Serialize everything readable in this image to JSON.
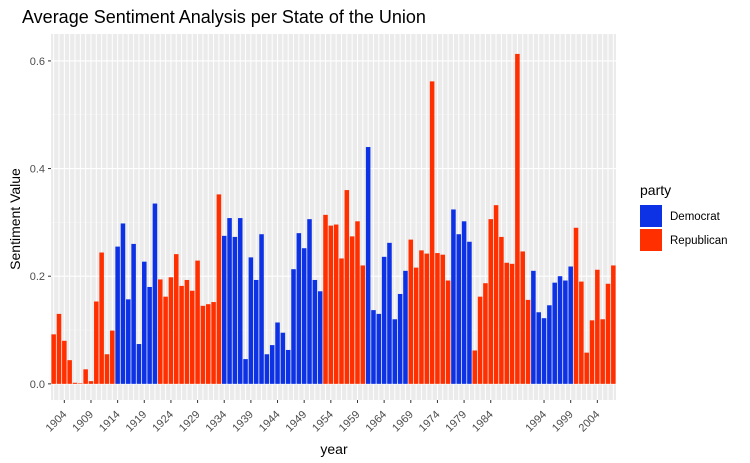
{
  "chart_data": {
    "type": "bar",
    "title": "Average Sentiment Analysis per State of the Union",
    "xlabel": "year",
    "ylabel": "Sentiment Value",
    "ylim": [
      -0.03,
      0.65
    ],
    "y_ticks": [
      0.0,
      0.2,
      0.4,
      0.6
    ],
    "y_tick_labels": [
      "0.0",
      "0.2",
      "0.4",
      "0.6"
    ],
    "x_tick_labels": [
      "1904",
      "1909",
      "1914",
      "1919",
      "1924",
      "1929",
      "1934",
      "1939",
      "1944",
      "1949",
      "1954",
      "1959",
      "1964",
      "1969",
      "1974",
      "1979",
      "1984",
      "1994",
      "1999",
      "2004"
    ],
    "grid": true,
    "legend": {
      "title": "party",
      "position": "right",
      "entries": [
        {
          "label": "Democrat",
          "color": "#0d32e6"
        },
        {
          "label": "Republican",
          "color": "#ff2f00"
        }
      ]
    },
    "bars": [
      {
        "party": "Republican",
        "value": 0.092
      },
      {
        "party": "Republican",
        "value": 0.13
      },
      {
        "party": "Republican",
        "value": 0.08
      },
      {
        "party": "Republican",
        "value": 0.044
      },
      {
        "party": "Republican",
        "value": 0.002
      },
      {
        "party": "Republican",
        "value": 0.001
      },
      {
        "party": "Republican",
        "value": 0.027
      },
      {
        "party": "Republican",
        "value": 0.005
      },
      {
        "party": "Republican",
        "value": 0.153
      },
      {
        "party": "Republican",
        "value": 0.244
      },
      {
        "party": "Republican",
        "value": 0.055
      },
      {
        "party": "Republican",
        "value": 0.099
      },
      {
        "party": "Democrat",
        "value": 0.255
      },
      {
        "party": "Democrat",
        "value": 0.298
      },
      {
        "party": "Democrat",
        "value": 0.157
      },
      {
        "party": "Democrat",
        "value": 0.26
      },
      {
        "party": "Democrat",
        "value": 0.074
      },
      {
        "party": "Democrat",
        "value": 0.227
      },
      {
        "party": "Democrat",
        "value": 0.18
      },
      {
        "party": "Democrat",
        "value": 0.335
      },
      {
        "party": "Republican",
        "value": 0.194
      },
      {
        "party": "Republican",
        "value": 0.162
      },
      {
        "party": "Republican",
        "value": 0.198
      },
      {
        "party": "Republican",
        "value": 0.241
      },
      {
        "party": "Republican",
        "value": 0.182
      },
      {
        "party": "Republican",
        "value": 0.193
      },
      {
        "party": "Republican",
        "value": 0.173
      },
      {
        "party": "Republican",
        "value": 0.229
      },
      {
        "party": "Republican",
        "value": 0.145
      },
      {
        "party": "Republican",
        "value": 0.148
      },
      {
        "party": "Republican",
        "value": 0.152
      },
      {
        "party": "Republican",
        "value": 0.352
      },
      {
        "party": "Democrat",
        "value": 0.275
      },
      {
        "party": "Democrat",
        "value": 0.308
      },
      {
        "party": "Democrat",
        "value": 0.273
      },
      {
        "party": "Democrat",
        "value": 0.308
      },
      {
        "party": "Democrat",
        "value": 0.046
      },
      {
        "party": "Democrat",
        "value": 0.235
      },
      {
        "party": "Democrat",
        "value": 0.193
      },
      {
        "party": "Democrat",
        "value": 0.278
      },
      {
        "party": "Democrat",
        "value": 0.055
      },
      {
        "party": "Democrat",
        "value": 0.072
      },
      {
        "party": "Democrat",
        "value": 0.114
      },
      {
        "party": "Democrat",
        "value": 0.095
      },
      {
        "party": "Democrat",
        "value": 0.063
      },
      {
        "party": "Democrat",
        "value": 0.213
      },
      {
        "party": "Democrat",
        "value": 0.28
      },
      {
        "party": "Democrat",
        "value": 0.252
      },
      {
        "party": "Democrat",
        "value": 0.306
      },
      {
        "party": "Democrat",
        "value": 0.193
      },
      {
        "party": "Democrat",
        "value": 0.172
      },
      {
        "party": "Republican",
        "value": 0.314
      },
      {
        "party": "Republican",
        "value": 0.294
      },
      {
        "party": "Republican",
        "value": 0.296
      },
      {
        "party": "Republican",
        "value": 0.233
      },
      {
        "party": "Republican",
        "value": 0.36
      },
      {
        "party": "Republican",
        "value": 0.274
      },
      {
        "party": "Republican",
        "value": 0.302
      },
      {
        "party": "Republican",
        "value": 0.22
      },
      {
        "party": "Democrat",
        "value": 0.44
      },
      {
        "party": "Democrat",
        "value": 0.137
      },
      {
        "party": "Democrat",
        "value": 0.13
      },
      {
        "party": "Democrat",
        "value": 0.236
      },
      {
        "party": "Democrat",
        "value": 0.262
      },
      {
        "party": "Democrat",
        "value": 0.12
      },
      {
        "party": "Democrat",
        "value": 0.167
      },
      {
        "party": "Democrat",
        "value": 0.21
      },
      {
        "party": "Republican",
        "value": 0.268
      },
      {
        "party": "Republican",
        "value": 0.216
      },
      {
        "party": "Republican",
        "value": 0.248
      },
      {
        "party": "Republican",
        "value": 0.242
      },
      {
        "party": "Republican",
        "value": 0.562
      },
      {
        "party": "Republican",
        "value": 0.243
      },
      {
        "party": "Republican",
        "value": 0.24
      },
      {
        "party": "Republican",
        "value": 0.192
      },
      {
        "party": "Democrat",
        "value": 0.324
      },
      {
        "party": "Democrat",
        "value": 0.278
      },
      {
        "party": "Democrat",
        "value": 0.302
      },
      {
        "party": "Democrat",
        "value": 0.264
      },
      {
        "party": "Republican",
        "value": 0.062
      },
      {
        "party": "Republican",
        "value": 0.162
      },
      {
        "party": "Republican",
        "value": 0.187
      },
      {
        "party": "Republican",
        "value": 0.306
      },
      {
        "party": "Republican",
        "value": 0.332
      },
      {
        "party": "Republican",
        "value": 0.273
      },
      {
        "party": "Republican",
        "value": 0.225
      },
      {
        "party": "Republican",
        "value": 0.223
      },
      {
        "party": "Republican",
        "value": 0.613
      },
      {
        "party": "Republican",
        "value": 0.246
      },
      {
        "party": "Republican",
        "value": 0.156
      },
      {
        "party": "Democrat",
        "value": 0.21
      },
      {
        "party": "Democrat",
        "value": 0.133
      },
      {
        "party": "Democrat",
        "value": 0.122
      },
      {
        "party": "Democrat",
        "value": 0.146
      },
      {
        "party": "Democrat",
        "value": 0.188
      },
      {
        "party": "Democrat",
        "value": 0.2
      },
      {
        "party": "Democrat",
        "value": 0.192
      },
      {
        "party": "Democrat",
        "value": 0.218
      },
      {
        "party": "Republican",
        "value": 0.29
      },
      {
        "party": "Republican",
        "value": 0.19
      },
      {
        "party": "Republican",
        "value": 0.058
      },
      {
        "party": "Republican",
        "value": 0.118
      },
      {
        "party": "Republican",
        "value": 0.212
      },
      {
        "party": "Republican",
        "value": 0.12
      },
      {
        "party": "Republican",
        "value": 0.186
      },
      {
        "party": "Republican",
        "value": 0.22
      }
    ]
  }
}
